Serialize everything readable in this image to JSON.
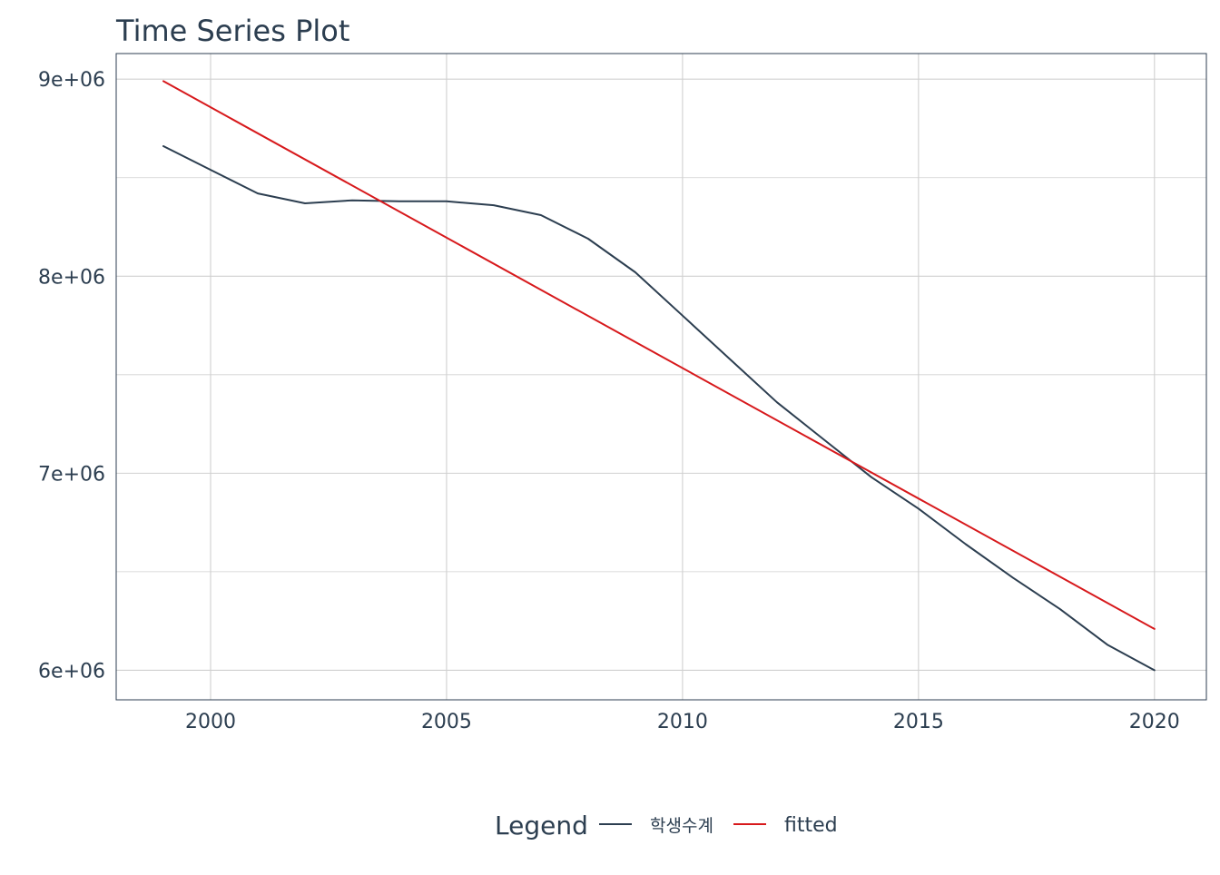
{
  "colors": {
    "text": "#2c3e50",
    "grid": "#d0d0d0",
    "panel_border": "#2c3e50",
    "series_actual": "#2c3e50",
    "series_fitted": "#d7191c"
  },
  "chart_data": {
    "type": "line",
    "title": "Time Series Plot",
    "xlabel": "",
    "ylabel": "",
    "xlim": [
      1998,
      2021.1
    ],
    "ylim": [
      5850000,
      9130000
    ],
    "x_ticks": [
      2000,
      2005,
      2010,
      2015,
      2020
    ],
    "x_tick_labels": [
      "2000",
      "2005",
      "2010",
      "2015",
      "2020"
    ],
    "y_ticks": [
      6000000,
      7000000,
      8000000,
      9000000
    ],
    "y_tick_labels": [
      "6e+06",
      "7e+06",
      "8e+06",
      "9e+06"
    ],
    "y_minor_ticks": [
      6500000,
      7500000,
      8500000
    ],
    "grid": true,
    "legend": {
      "title": "Legend",
      "position": "bottom"
    },
    "series": [
      {
        "name": "학생수계",
        "color_key": "series_actual",
        "x": [
          1999,
          2000,
          2001,
          2002,
          2003,
          2004,
          2005,
          2006,
          2007,
          2008,
          2009,
          2010,
          2011,
          2012,
          2013,
          2014,
          2015,
          2016,
          2017,
          2018,
          2019,
          2020
        ],
        "y": [
          8660000,
          8540000,
          8420000,
          8370000,
          8385000,
          8380000,
          8380000,
          8360000,
          8310000,
          8190000,
          8020000,
          7800000,
          7580000,
          7360000,
          7170000,
          6980000,
          6820000,
          6640000,
          6470000,
          6310000,
          6130000,
          6000000
        ]
      },
      {
        "name": "fitted",
        "color_key": "series_fitted",
        "x": [
          1999,
          2020
        ],
        "y": [
          8990000,
          6210000
        ]
      }
    ]
  }
}
